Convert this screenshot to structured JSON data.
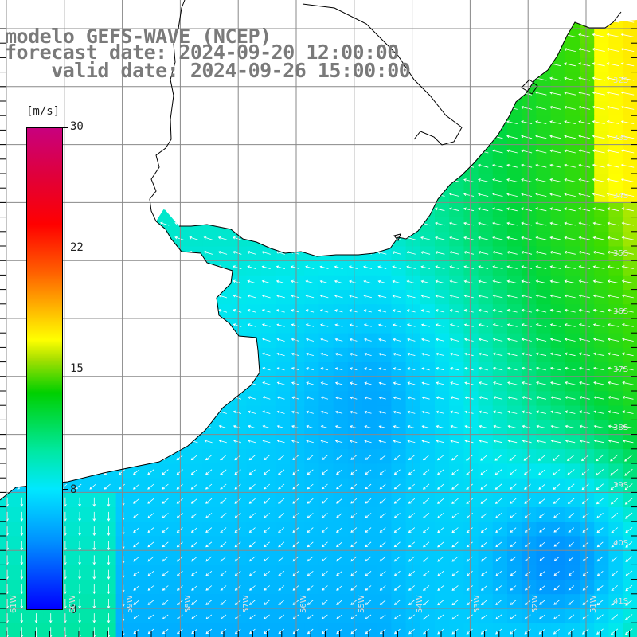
{
  "title": {
    "line1": "modelo GEFS-WAVE (NCEP)",
    "line2": "forecast date: 2024-09-20 12:00:00",
    "line3": "    valid date: 2024-09-26 15:00:00"
  },
  "colorbar": {
    "unit": "[m/s]",
    "tick_labels": [
      "30",
      "22",
      "15",
      "8",
      "0"
    ],
    "tick_values": [
      30,
      22,
      15,
      8,
      0
    ],
    "range": [
      0,
      30
    ]
  },
  "lat_labels": [
    "33S",
    "34S",
    "35S",
    "36S",
    "37S",
    "38S",
    "39S",
    "40S",
    "41S",
    "32S"
  ],
  "lon_labels": [
    "61W",
    "60W",
    "59W",
    "58W",
    "57W",
    "56W",
    "55W",
    "54W",
    "53W",
    "52W",
    "51W"
  ],
  "colors": {
    "land": "#ffffff",
    "grid": "#888888",
    "coast": "#000000",
    "arrows": "#ffffff"
  }
}
